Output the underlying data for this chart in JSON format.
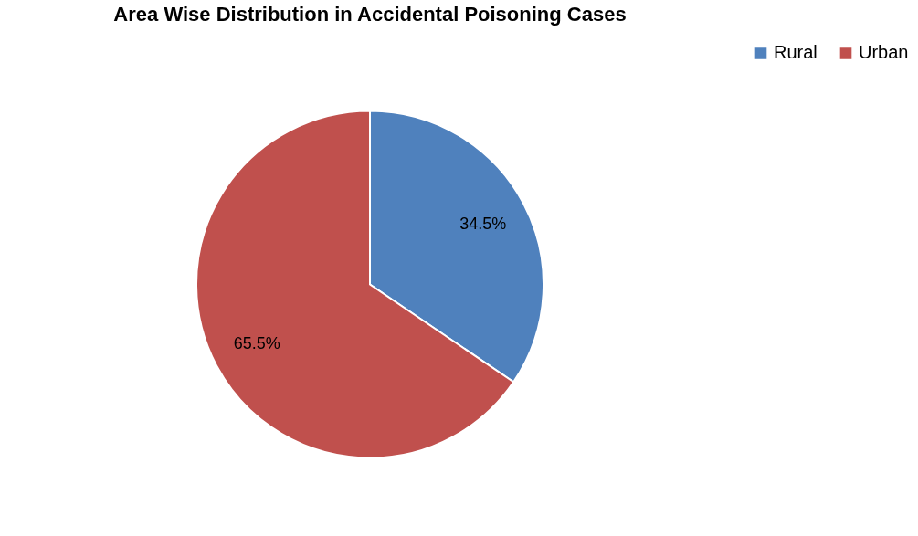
{
  "chart_data": {
    "type": "pie",
    "title": "Area Wise Distribution in Accidental Poisoning Cases",
    "categories": [
      "Rural",
      "Urban"
    ],
    "values": [
      34.5,
      65.5
    ],
    "colors": [
      "#4f81bd",
      "#c0504d"
    ],
    "value_labels": [
      "34.5%",
      "65.5%"
    ],
    "legend": "right"
  }
}
